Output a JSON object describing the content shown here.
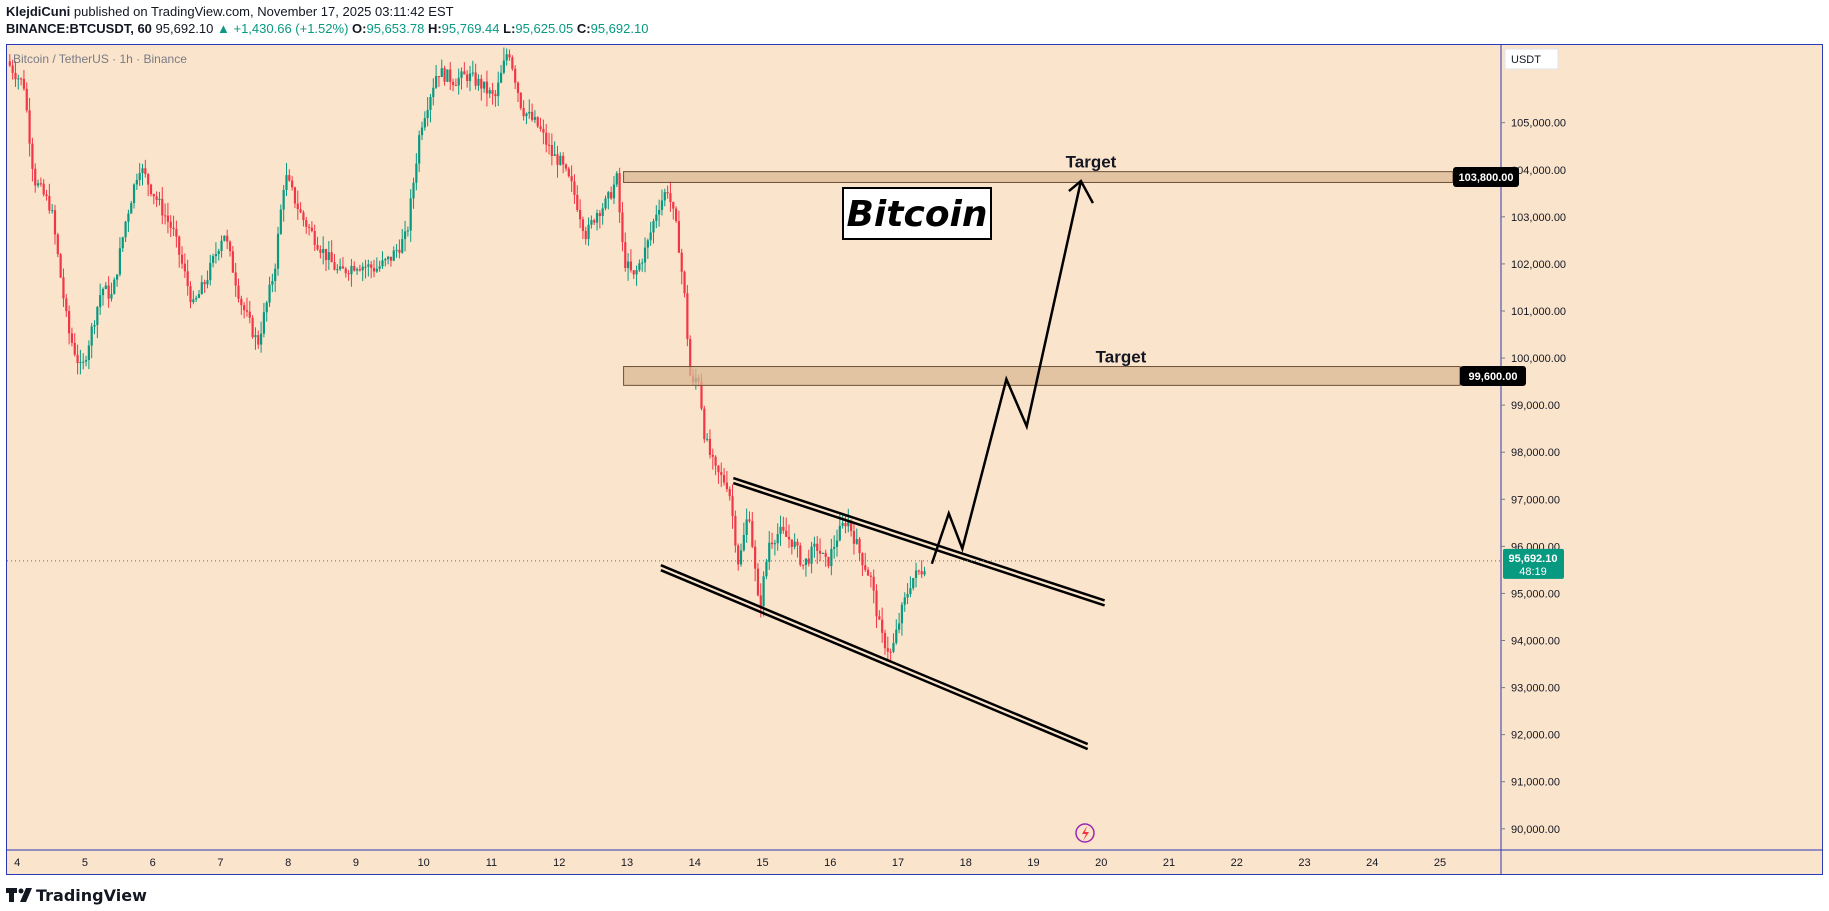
{
  "header": {
    "author": "KlejdiCuni",
    "published_text": "published on TradingView.com, November 17, 2025 03:11:42 EST",
    "symbol": "BINANCE:BTCUSDT, 60",
    "last": "95,692.10",
    "change": "▲ +1,430.66 (+1.52%)",
    "o_label": "O:",
    "o_val": "95,653.78",
    "h_label": "H:",
    "h_val": "95,769.44",
    "l_label": "L:",
    "l_val": "95,625.05",
    "c_label": "C:",
    "c_val": "95,692.10"
  },
  "footer": {
    "brand": "TradingView"
  },
  "colors": {
    "background": "#fbe4cc",
    "up": "#089981",
    "down": "#f23645",
    "zone_fill": "#d9b894",
    "frame": "#2a39b5",
    "price_label_bg": "#089981"
  },
  "chart_data": {
    "type": "candlestick",
    "title": "Bitcoin / TetherUS · 1h · Binance",
    "currency": "USDT",
    "annotation_title": "Bitcoin",
    "x_ticks": [
      "4",
      "5",
      "6",
      "7",
      "8",
      "9",
      "10",
      "11",
      "12",
      "13",
      "14",
      "15",
      "16",
      "17",
      "18",
      "19",
      "20",
      "21",
      "22",
      "23",
      "24",
      "25"
    ],
    "y_ticks": [
      "105,000.00",
      "104,000.00",
      "103,000.00",
      "102,000.00",
      "101,000.00",
      "100,000.00",
      "99,000.00",
      "98,000.00",
      "97,000.00",
      "96,000.00",
      "95,000.00",
      "94,000.00",
      "93,000.00",
      "92,000.00",
      "91,000.00",
      "90,000.00"
    ],
    "ylim": [
      89550,
      106650
    ],
    "xlim": [
      3.85,
      25.9
    ],
    "current_price": {
      "price": 95692.1,
      "label": "95,692.10",
      "countdown": "48:19"
    },
    "target_zones": [
      {
        "label": "Target",
        "low": 103730,
        "high": 103960,
        "tag": "103,800.00",
        "start_day": 12.95
      },
      {
        "label": "Target",
        "low": 99420,
        "high": 99820,
        "tag": "99,600.00",
        "start_day": 12.95
      }
    ],
    "channel": {
      "upper": [
        [
          14.57,
          97450
        ],
        [
          16.05,
          96670
        ],
        [
          20.05,
          94850
        ]
      ],
      "lower": [
        [
          13.5,
          95600
        ],
        [
          15.3,
          94200
        ],
        [
          19.8,
          91800
        ]
      ]
    },
    "projection_path": [
      [
        17.5,
        95630
      ],
      [
        17.75,
        96700
      ],
      [
        17.95,
        95950
      ],
      [
        18.6,
        99550
      ],
      [
        18.9,
        98550
      ],
      [
        19.7,
        103760
      ]
    ],
    "price_path": [
      [
        3.85,
        106300
      ],
      [
        4.1,
        105800
      ],
      [
        4.25,
        103800
      ],
      [
        4.5,
        103200
      ],
      [
        4.75,
        100600
      ],
      [
        4.95,
        99700
      ],
      [
        5.05,
        100300
      ],
      [
        5.25,
        101500
      ],
      [
        5.4,
        101300
      ],
      [
        5.6,
        102900
      ],
      [
        5.8,
        104100
      ],
      [
        6.05,
        103400
      ],
      [
        6.3,
        102700
      ],
      [
        6.6,
        101100
      ],
      [
        6.8,
        101700
      ],
      [
        7.05,
        102700
      ],
      [
        7.3,
        101200
      ],
      [
        7.55,
        100300
      ],
      [
        7.8,
        101900
      ],
      [
        7.95,
        103900
      ],
      [
        8.2,
        103000
      ],
      [
        8.5,
        102300
      ],
      [
        8.75,
        101800
      ],
      [
        9.0,
        102000
      ],
      [
        9.3,
        101900
      ],
      [
        9.5,
        102100
      ],
      [
        9.75,
        102600
      ],
      [
        9.95,
        104900
      ],
      [
        10.2,
        106100
      ],
      [
        10.45,
        105900
      ],
      [
        10.65,
        106000
      ],
      [
        10.85,
        105800
      ],
      [
        11.05,
        105500
      ],
      [
        11.25,
        106600
      ],
      [
        11.45,
        105300
      ],
      [
        11.7,
        104900
      ],
      [
        11.9,
        104300
      ],
      [
        12.0,
        104200
      ],
      [
        12.2,
        103600
      ],
      [
        12.4,
        102600
      ],
      [
        12.55,
        103100
      ],
      [
        12.7,
        103300
      ],
      [
        12.85,
        103800
      ],
      [
        12.95,
        102100
      ],
      [
        13.1,
        101700
      ],
      [
        13.3,
        102400
      ],
      [
        13.45,
        103200
      ],
      [
        13.6,
        103600
      ],
      [
        13.75,
        102600
      ],
      [
        13.85,
        101300
      ],
      [
        13.95,
        99300
      ],
      [
        14.05,
        99700
      ],
      [
        14.15,
        98300
      ],
      [
        14.3,
        97600
      ],
      [
        14.5,
        97300
      ],
      [
        14.65,
        95600
      ],
      [
        14.8,
        96800
      ],
      [
        14.95,
        94600
      ],
      [
        15.1,
        96100
      ],
      [
        15.25,
        96300
      ],
      [
        15.45,
        96100
      ],
      [
        15.6,
        95600
      ],
      [
        15.8,
        96000
      ],
      [
        15.95,
        95600
      ],
      [
        16.1,
        96200
      ],
      [
        16.25,
        96600
      ],
      [
        16.45,
        95800
      ],
      [
        16.6,
        95300
      ],
      [
        16.75,
        94100
      ],
      [
        16.9,
        93700
      ],
      [
        17.05,
        94600
      ],
      [
        17.2,
        95300
      ],
      [
        17.35,
        95500
      ],
      [
        17.42,
        95692
      ]
    ],
    "grid": false,
    "legend": "none"
  }
}
